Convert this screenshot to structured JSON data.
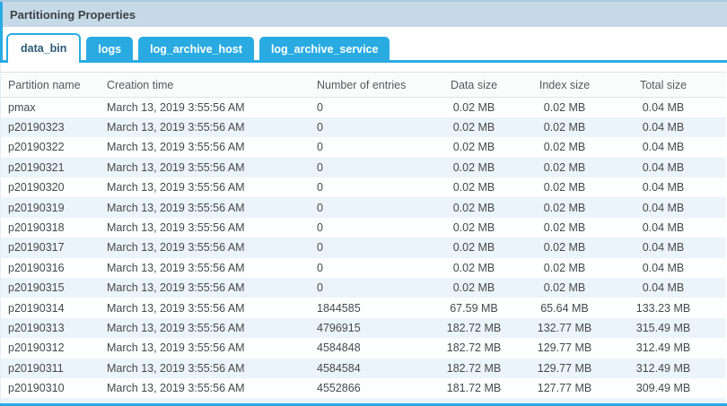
{
  "panel": {
    "title": "Partitioning Properties"
  },
  "tabs": [
    {
      "label": "data_bin",
      "active": true
    },
    {
      "label": "logs",
      "active": false
    },
    {
      "label": "log_archive_host",
      "active": false
    },
    {
      "label": "log_archive_service",
      "active": false
    }
  ],
  "table": {
    "columns": [
      {
        "label": "Partition name",
        "align": "left"
      },
      {
        "label": "Creation time",
        "align": "left"
      },
      {
        "label": "Number of entries",
        "align": "left"
      },
      {
        "label": "Data size",
        "align": "center"
      },
      {
        "label": "Index size",
        "align": "center"
      },
      {
        "label": "Total size",
        "align": "center"
      }
    ],
    "rows": [
      [
        "pmax",
        "March 13, 2019 3:55:56 AM",
        "0",
        "0.02 MB",
        "0.02 MB",
        "0.04 MB"
      ],
      [
        "p20190323",
        "March 13, 2019 3:55:56 AM",
        "0",
        "0.02 MB",
        "0.02 MB",
        "0.04 MB"
      ],
      [
        "p20190322",
        "March 13, 2019 3:55:56 AM",
        "0",
        "0.02 MB",
        "0.02 MB",
        "0.04 MB"
      ],
      [
        "p20190321",
        "March 13, 2019 3:55:56 AM",
        "0",
        "0.02 MB",
        "0.02 MB",
        "0.04 MB"
      ],
      [
        "p20190320",
        "March 13, 2019 3:55:56 AM",
        "0",
        "0.02 MB",
        "0.02 MB",
        "0.04 MB"
      ],
      [
        "p20190319",
        "March 13, 2019 3:55:56 AM",
        "0",
        "0.02 MB",
        "0.02 MB",
        "0.04 MB"
      ],
      [
        "p20190318",
        "March 13, 2019 3:55:56 AM",
        "0",
        "0.02 MB",
        "0.02 MB",
        "0.04 MB"
      ],
      [
        "p20190317",
        "March 13, 2019 3:55:56 AM",
        "0",
        "0.02 MB",
        "0.02 MB",
        "0.04 MB"
      ],
      [
        "p20190316",
        "March 13, 2019 3:55:56 AM",
        "0",
        "0.02 MB",
        "0.02 MB",
        "0.04 MB"
      ],
      [
        "p20190315",
        "March 13, 2019 3:55:56 AM",
        "0",
        "0.02 MB",
        "0.02 MB",
        "0.04 MB"
      ],
      [
        "p20190314",
        "March 13, 2019 3:55:56 AM",
        "1844585",
        "67.59 MB",
        "65.64 MB",
        "133.23 MB"
      ],
      [
        "p20190313",
        "March 13, 2019 3:55:56 AM",
        "4796915",
        "182.72 MB",
        "132.77 MB",
        "315.49 MB"
      ],
      [
        "p20190312",
        "March 13, 2019 3:55:56 AM",
        "4584848",
        "182.72 MB",
        "129.77 MB",
        "312.49 MB"
      ],
      [
        "p20190311",
        "March 13, 2019 3:55:56 AM",
        "4584584",
        "182.72 MB",
        "129.77 MB",
        "312.49 MB"
      ],
      [
        "p20190310",
        "March 13, 2019 3:55:56 AM",
        "4552866",
        "181.72 MB",
        "127.77 MB",
        "309.49 MB"
      ]
    ]
  },
  "colors": {
    "accent": "#29abe2",
    "titlebar_bg": "#c6d9e7",
    "stripe_bg": "#ebf4fa"
  }
}
